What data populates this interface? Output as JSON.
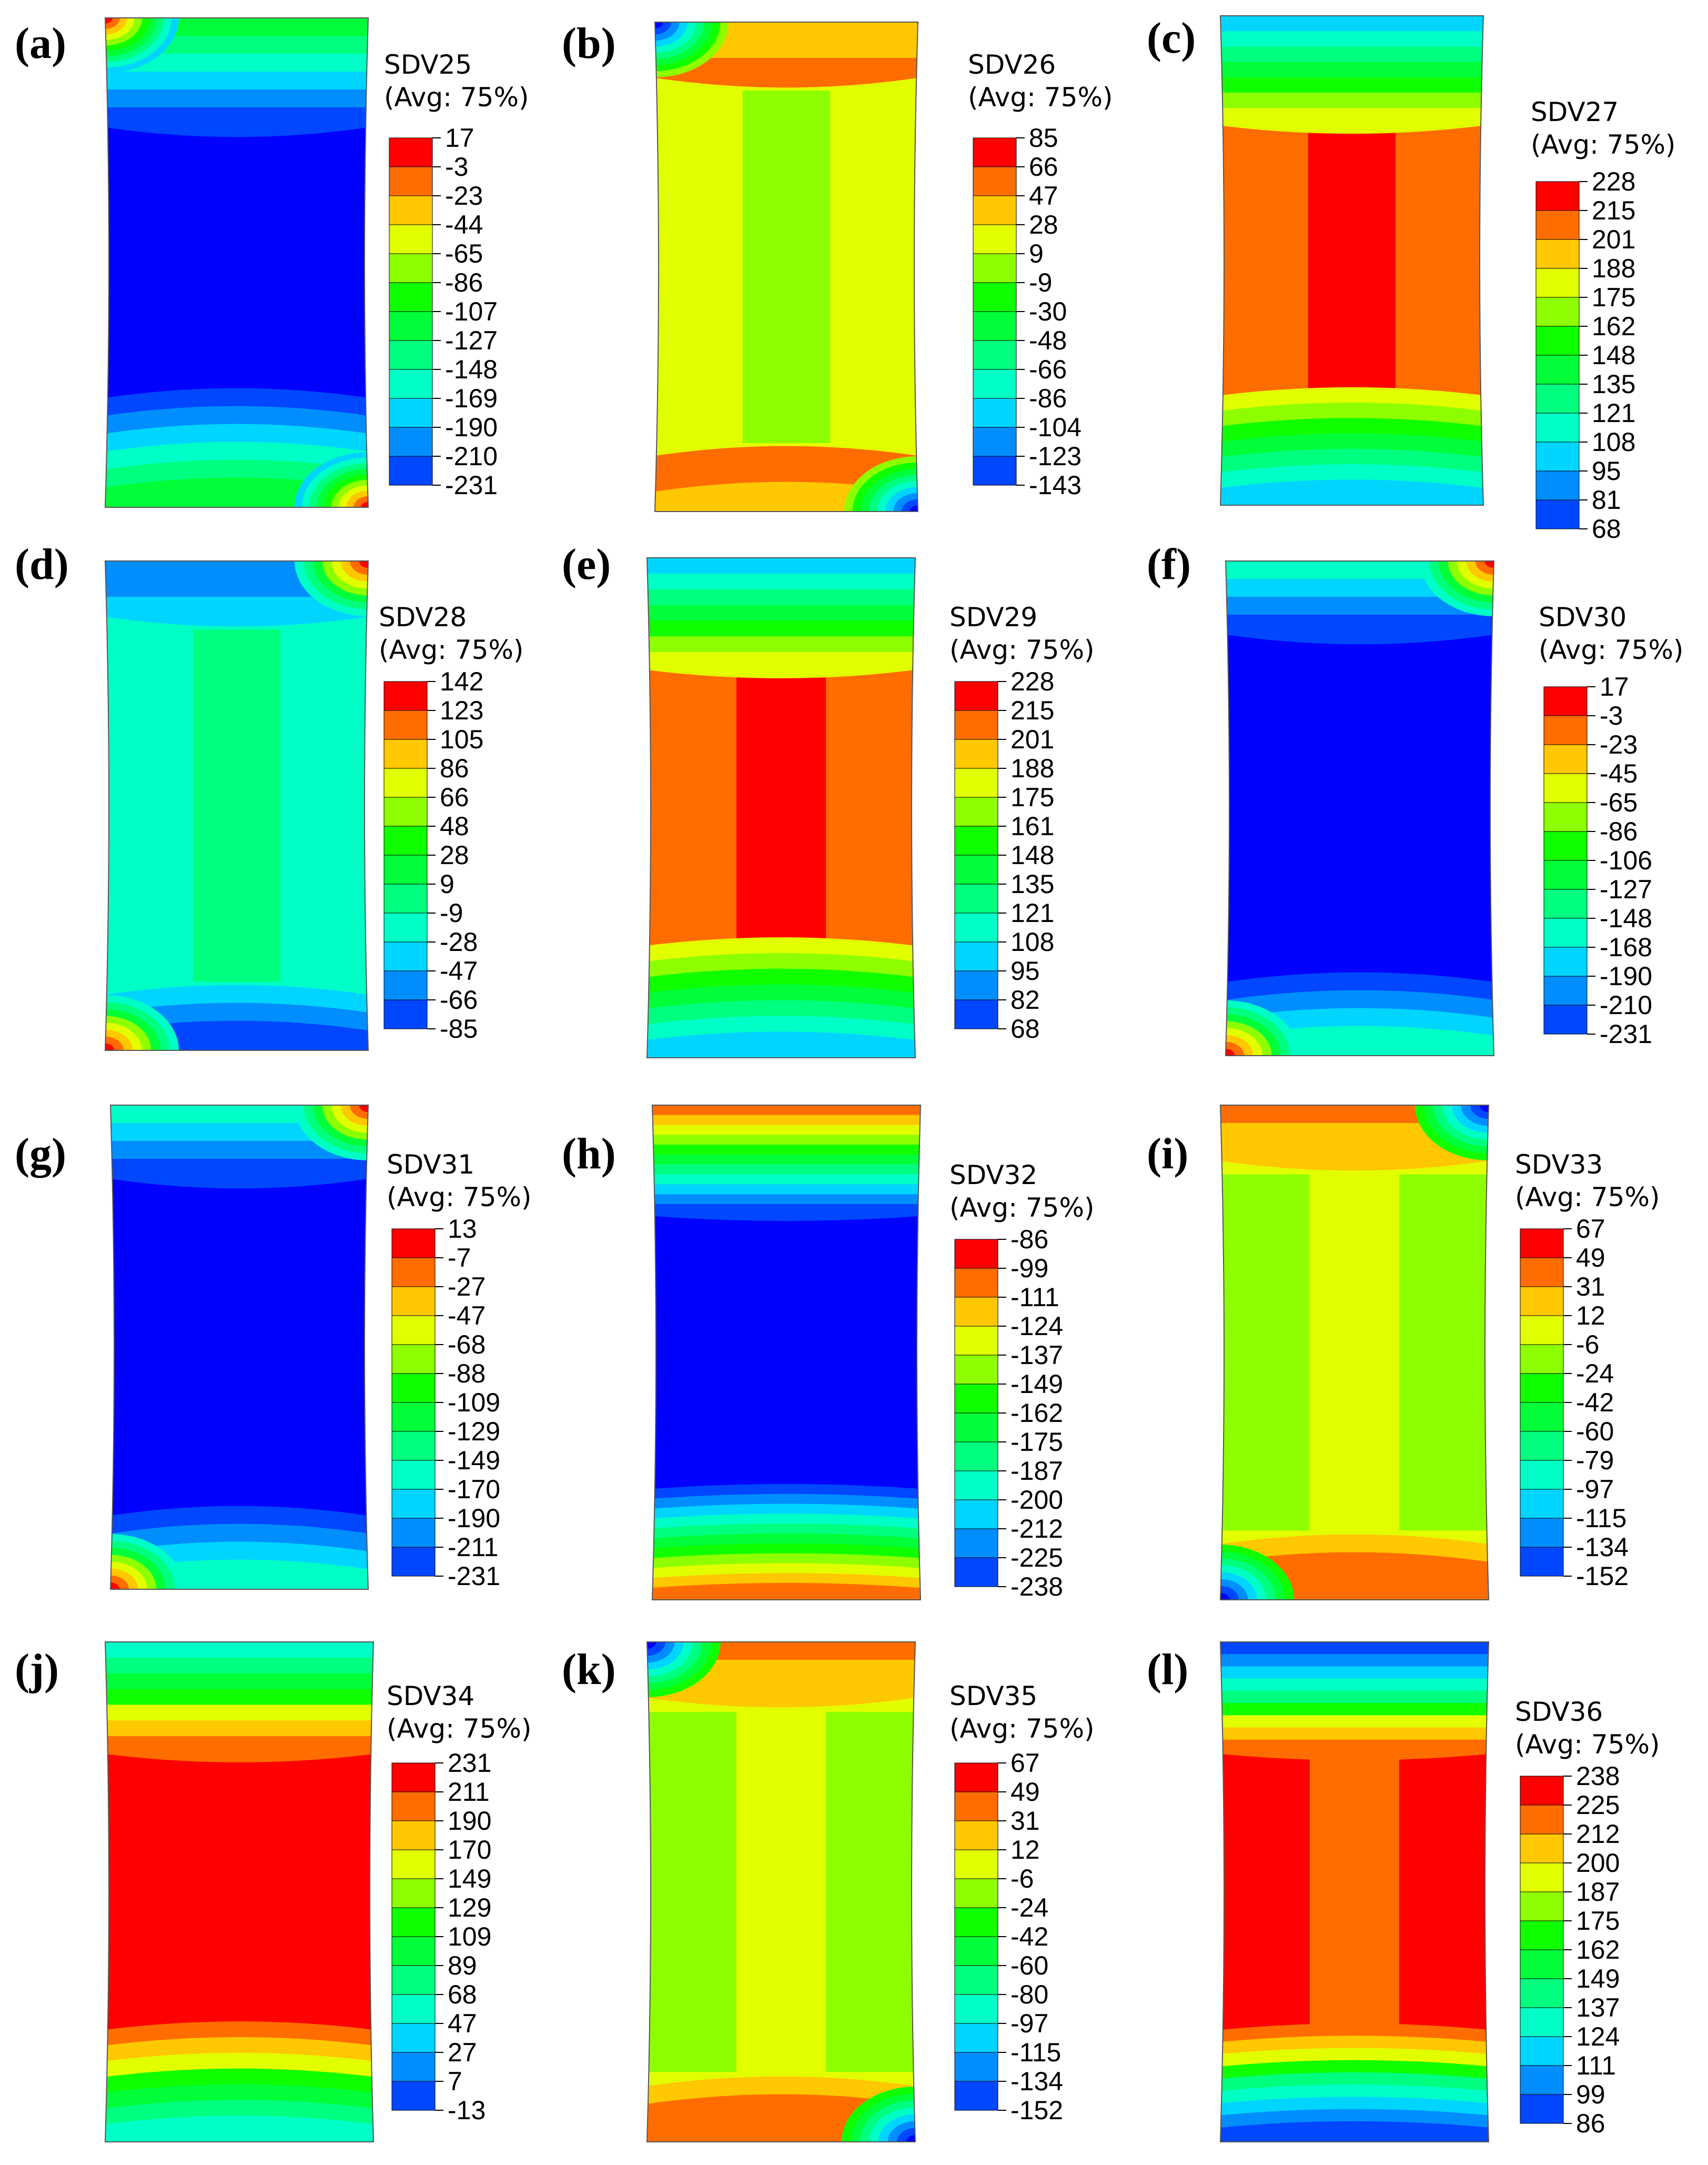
{
  "colors": [
    "#0000ff",
    "#0047ff",
    "#008eff",
    "#00d5ff",
    "#00ffc6",
    "#00ff7f",
    "#00ff38",
    "#0fff00",
    "#8eff00",
    "#e2ff00",
    "#ffc800",
    "#ff6d00",
    "#ff0000"
  ],
  "panels": [
    {
      "label": "(a)",
      "title": "SDV25",
      "subtitle": "(Avg: 75%)",
      "ticks": [
        "17",
        "-3",
        "-23",
        "-44",
        "-65",
        "-86",
        "-107",
        "-127",
        "-148",
        "-169",
        "-190",
        "-210",
        "-231"
      ]
    },
    {
      "label": "(b)",
      "title": "SDV26",
      "subtitle": "(Avg: 75%)",
      "ticks": [
        "85",
        "66",
        "47",
        "28",
        "9",
        "-9",
        "-30",
        "-48",
        "-66",
        "-86",
        "-104",
        "-123",
        "-143"
      ]
    },
    {
      "label": "(c)",
      "title": "SDV27",
      "subtitle": "(Avg: 75%)",
      "ticks": [
        "228",
        "215",
        "201",
        "188",
        "175",
        "162",
        "148",
        "135",
        "121",
        "108",
        "95",
        "81",
        "68"
      ]
    },
    {
      "label": "(d)",
      "title": "SDV28",
      "subtitle": "(Avg: 75%)",
      "ticks": [
        "142",
        "123",
        "105",
        "86",
        "66",
        "48",
        "28",
        "9",
        "-9",
        "-28",
        "-47",
        "-66",
        "-85"
      ]
    },
    {
      "label": "(e)",
      "title": "SDV29",
      "subtitle": "(Avg: 75%)",
      "ticks": [
        "228",
        "215",
        "201",
        "188",
        "175",
        "161",
        "148",
        "135",
        "121",
        "108",
        "95",
        "82",
        "68"
      ]
    },
    {
      "label": "(f)",
      "title": "SDV30",
      "subtitle": "(Avg: 75%)",
      "ticks": [
        "17",
        "-3",
        "-23",
        "-45",
        "-65",
        "-86",
        "-106",
        "-127",
        "-148",
        "-168",
        "-190",
        "-210",
        "-231"
      ]
    },
    {
      "label": "(g)",
      "title": "SDV31",
      "subtitle": "(Avg: 75%)",
      "ticks": [
        "13",
        "-7",
        "-27",
        "-47",
        "-68",
        "-88",
        "-109",
        "-129",
        "-149",
        "-170",
        "-190",
        "-211",
        "-231"
      ]
    },
    {
      "label": "(h)",
      "title": "SDV32",
      "subtitle": "(Avg: 75%)",
      "ticks": [
        "-86",
        "-99",
        "-111",
        "-124",
        "-137",
        "-149",
        "-162",
        "-175",
        "-187",
        "-200",
        "-212",
        "-225",
        "-238"
      ]
    },
    {
      "label": "(i)",
      "title": "SDV33",
      "subtitle": "(Avg: 75%)",
      "ticks": [
        "67",
        "49",
        "31",
        "12",
        "-6",
        "-24",
        "-42",
        "-60",
        "-79",
        "-97",
        "-115",
        "-134",
        "-152"
      ]
    },
    {
      "label": "(j)",
      "title": "SDV34",
      "subtitle": "(Avg: 75%)",
      "ticks": [
        "231",
        "211",
        "190",
        "170",
        "149",
        "129",
        "109",
        "89",
        "68",
        "47",
        "27",
        "7",
        "-13"
      ]
    },
    {
      "label": "(k)",
      "title": "SDV35",
      "subtitle": "(Avg: 75%)",
      "ticks": [
        "67",
        "49",
        "31",
        "12",
        "-6",
        "-24",
        "-42",
        "-60",
        "-80",
        "-97",
        "-115",
        "-134",
        "-152"
      ]
    },
    {
      "label": "(l)",
      "title": "SDV36",
      "subtitle": "(Avg: 75%)",
      "ticks": [
        "238",
        "225",
        "212",
        "200",
        "187",
        "175",
        "162",
        "149",
        "137",
        "124",
        "111",
        "99",
        "86"
      ]
    }
  ]
}
